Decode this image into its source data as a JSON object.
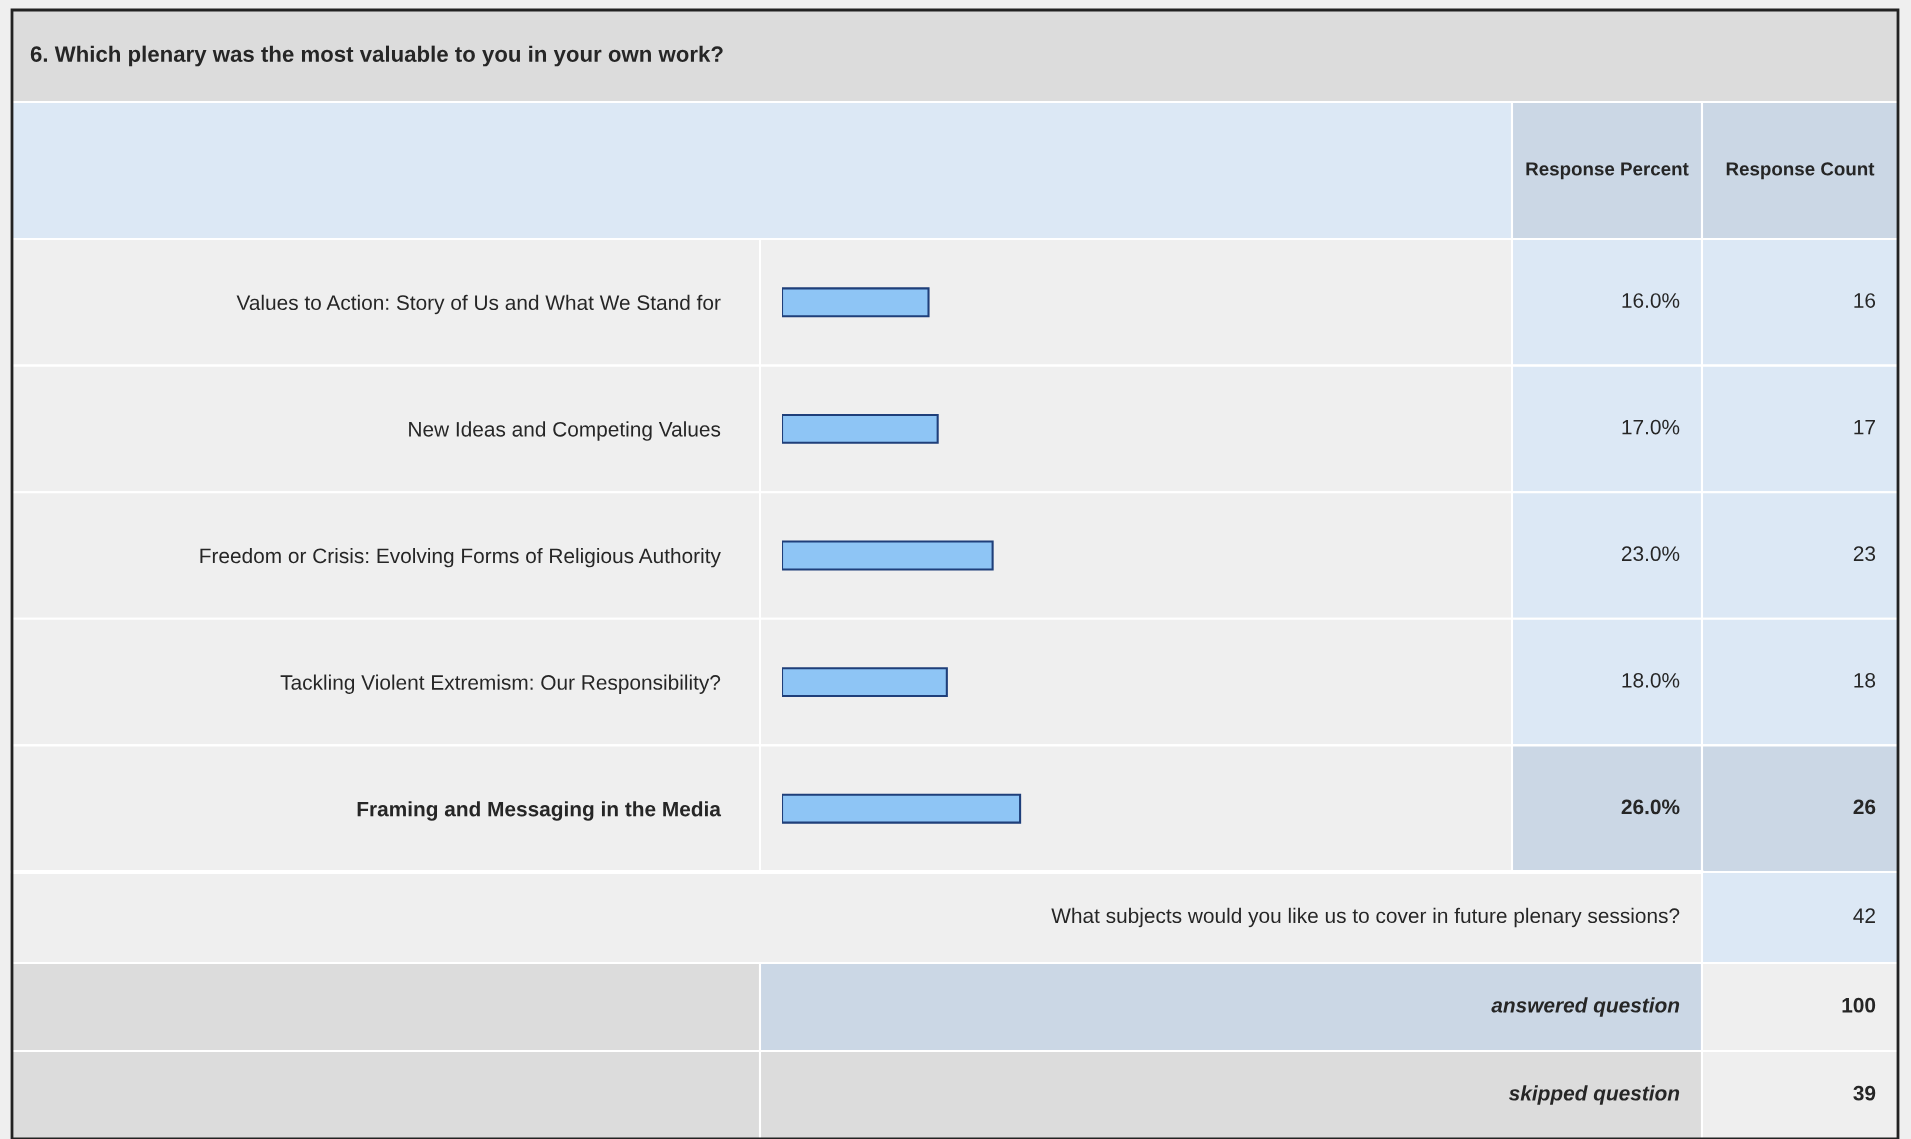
{
  "chart_data": {
    "type": "bar",
    "orientation": "horizontal",
    "title": "6. Which plenary was the most valuable to you in your own work?",
    "categories": [
      "Values to Action: Story of Us and What We Stand for",
      "New Ideas and Competing Values",
      "Freedom or Crisis: Evolving Forms of Religious Authority",
      "Tackling Violent Extremism: Our Responsibility?",
      "Framing and Messaging in the Media"
    ],
    "values": [
      16.0,
      17.0,
      23.0,
      18.0,
      26.0
    ],
    "value_labels": [
      "16.0%",
      "17.0%",
      "23.0%",
      "18.0%",
      "26.0%"
    ],
    "color": "#8ec5f5",
    "tick_labels": "y",
    "annotations": [
      "Response Percent",
      "Response Count",
      "16",
      "17",
      "23",
      "18",
      "26",
      "What subjects would you like us to cover in future plenary sessions?",
      "42",
      "answered question",
      "100",
      "skipped question",
      "39"
    ]
  }
}
